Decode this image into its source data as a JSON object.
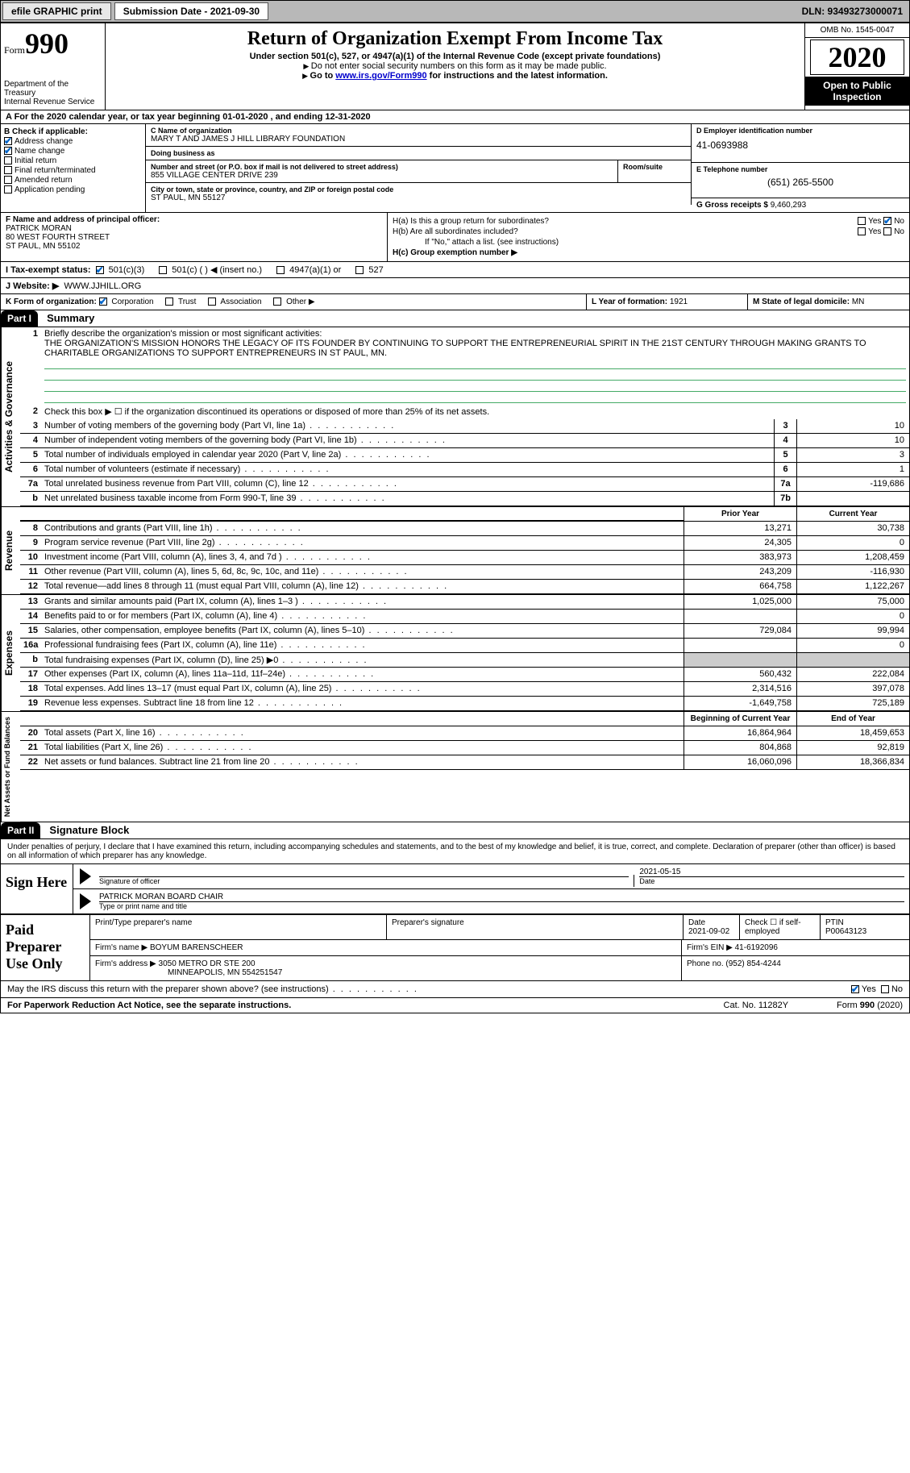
{
  "topbar": {
    "efile": "efile GRAPHIC print",
    "submission": "Submission Date - 2021-09-30",
    "dln": "DLN: 93493273000071"
  },
  "header": {
    "form_word": "Form",
    "form_num": "990",
    "title": "Return of Organization Exempt From Income Tax",
    "subtitle": "Under section 501(c), 527, or 4947(a)(1) of the Internal Revenue Code (except private foundations)",
    "note1": "Do not enter social security numbers on this form as it may be made public.",
    "note2_pre": "Go to ",
    "note2_link": "www.irs.gov/Form990",
    "note2_post": " for instructions and the latest information.",
    "dept": "Department of the Treasury\nInternal Revenue Service",
    "omb": "OMB No. 1545-0047",
    "year": "2020",
    "open": "Open to Public Inspection"
  },
  "rowA": "A For the 2020 calendar year, or tax year beginning 01-01-2020    , and ending 12-31-2020",
  "boxB": {
    "heading": "B Check if applicable:",
    "items": [
      {
        "label": "Address change",
        "checked": true
      },
      {
        "label": "Name change",
        "checked": true
      },
      {
        "label": "Initial return",
        "checked": false
      },
      {
        "label": "Final return/terminated",
        "checked": false
      },
      {
        "label": "Amended return",
        "checked": false
      },
      {
        "label": "Application pending",
        "checked": false
      }
    ]
  },
  "boxC": {
    "name_label": "C Name of organization",
    "name": "MARY T AND JAMES J HILL LIBRARY FOUNDATION",
    "dba_label": "Doing business as",
    "dba": "",
    "addr_label": "Number and street (or P.O. box if mail is not delivered to street address)",
    "room_label": "Room/suite",
    "addr": "855 VILLAGE CENTER DRIVE 239",
    "city_label": "City or town, state or province, country, and ZIP or foreign postal code",
    "city": "ST PAUL, MN  55127"
  },
  "boxD": {
    "label": "D Employer identification number",
    "value": "41-0693988"
  },
  "boxE": {
    "label": "E Telephone number",
    "value": "(651) 265-5500"
  },
  "boxG": {
    "label": "G Gross receipts $",
    "value": "9,460,293"
  },
  "boxF": {
    "label": "F  Name and address of principal officer:",
    "name": "PATRICK MORAN",
    "addr1": "80 WEST FOURTH STREET",
    "addr2": "ST PAUL, MN  55102"
  },
  "boxH": {
    "a_label": "H(a)  Is this a group return for subordinates?",
    "a_yes": false,
    "a_no": true,
    "b_label": "H(b)  Are all subordinates included?",
    "b_note": "If \"No,\" attach a list. (see instructions)",
    "c_label": "H(c)  Group exemption number ▶"
  },
  "boxI": {
    "label": "I   Tax-exempt status:",
    "opts": [
      "501(c)(3)",
      "501(c) (  ) ◀ (insert no.)",
      "4947(a)(1) or",
      "527"
    ],
    "checked": 0
  },
  "boxJ": {
    "label": "J   Website: ▶",
    "value": "WWW.JJHILL.ORG"
  },
  "boxK": {
    "label": "K Form of organization:",
    "opts": [
      "Corporation",
      "Trust",
      "Association",
      "Other ▶"
    ],
    "checked": 0
  },
  "boxL": {
    "label": "L Year of formation:",
    "value": "1921"
  },
  "boxM": {
    "label": "M State of legal domicile:",
    "value": "MN"
  },
  "part1": {
    "tag": "Part I",
    "title": "Summary"
  },
  "mission": {
    "prompt": "Briefly describe the organization's mission or most significant activities:",
    "text": "THE ORGANIZATION'S MISSION HONORS THE LEGACY OF ITS FOUNDER BY CONTINUING TO SUPPORT THE ENTREPRENEURIAL SPIRIT IN THE 21ST CENTURY THROUGH MAKING GRANTS TO CHARITABLE ORGANIZATIONS TO SUPPORT ENTREPRENEURS IN ST PAUL, MN."
  },
  "governance": {
    "line2": "Check this box ▶ ☐  if the organization discontinued its operations or disposed of more than 25% of its net assets.",
    "rows": [
      {
        "n": "3",
        "d": "Number of voting members of the governing body (Part VI, line 1a)",
        "b": "3",
        "v": "10"
      },
      {
        "n": "4",
        "d": "Number of independent voting members of the governing body (Part VI, line 1b)",
        "b": "4",
        "v": "10"
      },
      {
        "n": "5",
        "d": "Total number of individuals employed in calendar year 2020 (Part V, line 2a)",
        "b": "5",
        "v": "3"
      },
      {
        "n": "6",
        "d": "Total number of volunteers (estimate if necessary)",
        "b": "6",
        "v": "1"
      },
      {
        "n": "7a",
        "d": "Total unrelated business revenue from Part VIII, column (C), line 12",
        "b": "7a",
        "v": "-119,686"
      },
      {
        "n": "b",
        "d": "Net unrelated business taxable income from Form 990-T, line 39",
        "b": "7b",
        "v": ""
      }
    ]
  },
  "col_headers": {
    "prior": "Prior Year",
    "current": "Current Year"
  },
  "revenue_rows": [
    {
      "n": "8",
      "d": "Contributions and grants (Part VIII, line 1h)",
      "p": "13,271",
      "c": "30,738"
    },
    {
      "n": "9",
      "d": "Program service revenue (Part VIII, line 2g)",
      "p": "24,305",
      "c": "0"
    },
    {
      "n": "10",
      "d": "Investment income (Part VIII, column (A), lines 3, 4, and 7d )",
      "p": "383,973",
      "c": "1,208,459"
    },
    {
      "n": "11",
      "d": "Other revenue (Part VIII, column (A), lines 5, 6d, 8c, 9c, 10c, and 11e)",
      "p": "243,209",
      "c": "-116,930"
    },
    {
      "n": "12",
      "d": "Total revenue—add lines 8 through 11 (must equal Part VIII, column (A), line 12)",
      "p": "664,758",
      "c": "1,122,267"
    }
  ],
  "expense_rows": [
    {
      "n": "13",
      "d": "Grants and similar amounts paid (Part IX, column (A), lines 1–3 )",
      "p": "1,025,000",
      "c": "75,000"
    },
    {
      "n": "14",
      "d": "Benefits paid to or for members (Part IX, column (A), line 4)",
      "p": "",
      "c": "0"
    },
    {
      "n": "15",
      "d": "Salaries, other compensation, employee benefits (Part IX, column (A), lines 5–10)",
      "p": "729,084",
      "c": "99,994"
    },
    {
      "n": "16a",
      "d": "Professional fundraising fees (Part IX, column (A), line 11e)",
      "p": "",
      "c": "0"
    },
    {
      "n": "b",
      "d": "Total fundraising expenses (Part IX, column (D), line 25) ▶0",
      "p": "SHADE",
      "c": "SHADE"
    },
    {
      "n": "17",
      "d": "Other expenses (Part IX, column (A), lines 11a–11d, 11f–24e)",
      "p": "560,432",
      "c": "222,084"
    },
    {
      "n": "18",
      "d": "Total expenses. Add lines 13–17 (must equal Part IX, column (A), line 25)",
      "p": "2,314,516",
      "c": "397,078"
    },
    {
      "n": "19",
      "d": "Revenue less expenses. Subtract line 18 from line 12",
      "p": "-1,649,758",
      "c": "725,189"
    }
  ],
  "net_headers": {
    "beg": "Beginning of Current Year",
    "end": "End of Year"
  },
  "net_rows": [
    {
      "n": "20",
      "d": "Total assets (Part X, line 16)",
      "p": "16,864,964",
      "c": "18,459,653"
    },
    {
      "n": "21",
      "d": "Total liabilities (Part X, line 26)",
      "p": "804,868",
      "c": "92,819"
    },
    {
      "n": "22",
      "d": "Net assets or fund balances. Subtract line 21 from line 20",
      "p": "16,060,096",
      "c": "18,366,834"
    }
  ],
  "vtabs": {
    "governance": "Activities & Governance",
    "revenue": "Revenue",
    "expenses": "Expenses",
    "net": "Net Assets or Fund Balances"
  },
  "part2": {
    "tag": "Part II",
    "title": "Signature Block"
  },
  "penalties": "Under penalties of perjury, I declare that I have examined this return, including accompanying schedules and statements, and to the best of my knowledge and belief, it is true, correct, and complete. Declaration of preparer (other than officer) is based on all information of which preparer has any knowledge.",
  "sign": {
    "label": "Sign Here",
    "sig_label": "Signature of officer",
    "date_label": "Date",
    "date": "2021-05-15",
    "name": "PATRICK MORAN  BOARD CHAIR",
    "name_label": "Type or print name and title"
  },
  "prep": {
    "label": "Paid Preparer Use Only",
    "h": [
      "Print/Type preparer's name",
      "Preparer's signature",
      "Date",
      "",
      "PTIN"
    ],
    "date": "2021-09-02",
    "check_label": "Check ☐ if self-employed",
    "ptin": "P00643123",
    "firm_label": "Firm's name    ▶",
    "firm": "BOYUM BARENSCHEER",
    "ein_label": "Firm's EIN ▶",
    "ein": "41-6192096",
    "addr_label": "Firm's address ▶",
    "addr1": "3050 METRO DR STE 200",
    "addr2": "MINNEAPOLIS, MN  554251547",
    "phone_label": "Phone no.",
    "phone": "(952) 854-4244"
  },
  "discuss": {
    "text": "May the IRS discuss this return with the preparer shown above? (see instructions)",
    "yes": true
  },
  "footer": {
    "left": "For Paperwork Reduction Act Notice, see the separate instructions.",
    "mid": "Cat. No. 11282Y",
    "right": "Form 990 (2020)"
  }
}
